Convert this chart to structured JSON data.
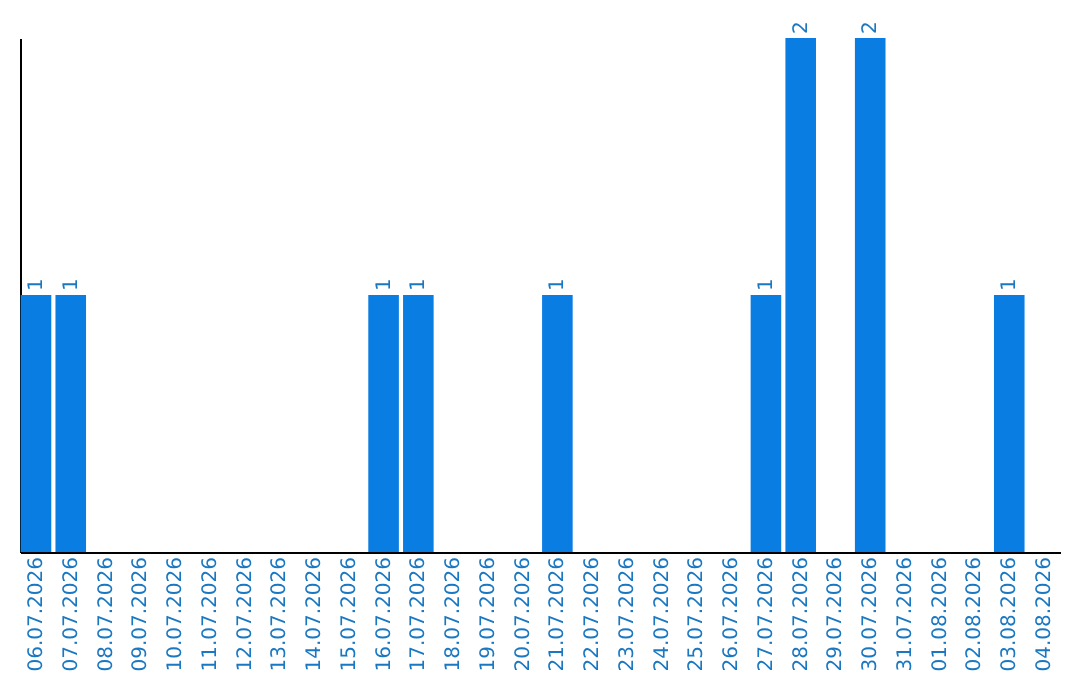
{
  "chart_data": {
    "type": "bar",
    "categories": [
      "06.07.2026",
      "07.07.2026",
      "08.07.2026",
      "09.07.2026",
      "10.07.2026",
      "11.07.2026",
      "12.07.2026",
      "13.07.2026",
      "14.07.2026",
      "15.07.2026",
      "16.07.2026",
      "17.07.2026",
      "18.07.2026",
      "19.07.2026",
      "20.07.2026",
      "21.07.2026",
      "22.07.2026",
      "23.07.2026",
      "24.07.2026",
      "25.07.2026",
      "26.07.2026",
      "27.07.2026",
      "28.07.2026",
      "29.07.2026",
      "30.07.2026",
      "31.07.2026",
      "01.08.2026",
      "02.08.2026",
      "03.08.2026",
      "04.08.2026"
    ],
    "values": [
      1,
      1,
      0,
      0,
      0,
      0,
      0,
      0,
      0,
      0,
      1,
      1,
      0,
      0,
      0,
      1,
      0,
      0,
      0,
      0,
      0,
      1,
      2,
      0,
      2,
      0,
      0,
      0,
      1,
      0
    ],
    "value_labels": [
      "1",
      "1",
      null,
      null,
      null,
      null,
      null,
      null,
      null,
      null,
      "1",
      "1",
      null,
      null,
      null,
      "1",
      null,
      null,
      null,
      null,
      null,
      "1",
      "2",
      null,
      "2",
      null,
      null,
      null,
      "1",
      null
    ],
    "color": "#0a7de3"
  }
}
